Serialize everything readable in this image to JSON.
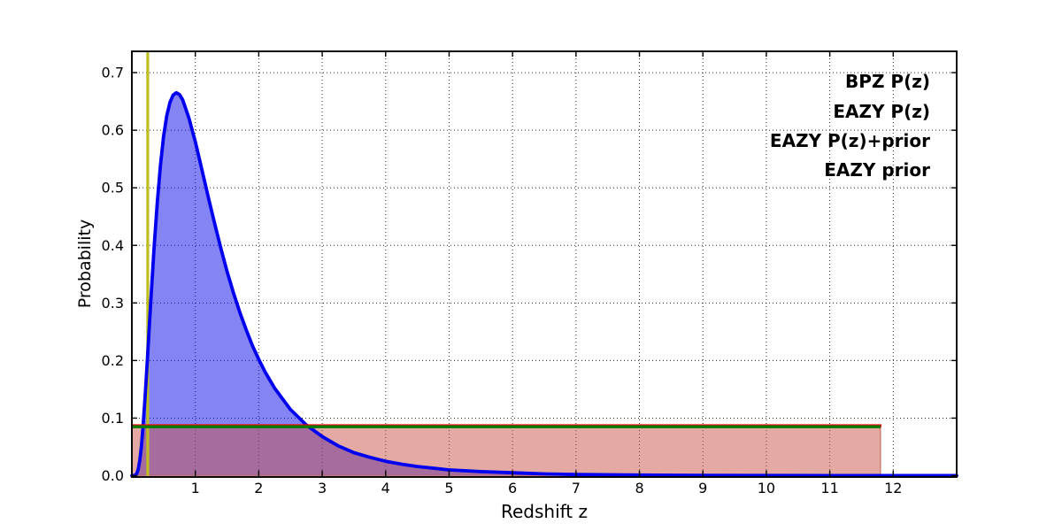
{
  "figure": {
    "background": "#ffffff",
    "plot_background": "#ffffff",
    "grid_color": "#2a2a2a",
    "spine_color": "#000000"
  },
  "chart_data": {
    "type": "line",
    "title": "",
    "xlabel": "Redshift z",
    "ylabel": "Probability",
    "xlim": [
      0,
      13
    ],
    "ylim": [
      0,
      0.737
    ],
    "xticks": [
      1,
      2,
      3,
      4,
      5,
      6,
      7,
      8,
      9,
      10,
      11,
      12
    ],
    "yticks": [
      0.0,
      0.1,
      0.2,
      0.3,
      0.4,
      0.5,
      0.6,
      0.7
    ],
    "grid": true,
    "grid_style": "dotted",
    "legend_position": "upper right inside, right-aligned text, no frame",
    "series": [
      {
        "name": "BPZ P(z)",
        "color": "#0000ee",
        "fill": "rgba(20,20,235,0.52)",
        "peak_z": 0.7,
        "peak_p": 0.665,
        "points": [
          [
            0,
            0
          ],
          [
            0.05,
            0.0004
          ],
          [
            0.075,
            0.003
          ],
          [
            0.1,
            0.011
          ],
          [
            0.125,
            0.027
          ],
          [
            0.15,
            0.051
          ],
          [
            0.175,
            0.083
          ],
          [
            0.2,
            0.122
          ],
          [
            0.225,
            0.165
          ],
          [
            0.25,
            0.211
          ],
          [
            0.275,
            0.259
          ],
          [
            0.3,
            0.306
          ],
          [
            0.35,
            0.396
          ],
          [
            0.4,
            0.474
          ],
          [
            0.45,
            0.539
          ],
          [
            0.5,
            0.589
          ],
          [
            0.55,
            0.625
          ],
          [
            0.6,
            0.648
          ],
          [
            0.65,
            0.661
          ],
          [
            0.7,
            0.665
          ],
          [
            0.75,
            0.662
          ],
          [
            0.8,
            0.653
          ],
          [
            0.9,
            0.621
          ],
          [
            1,
            0.58
          ],
          [
            1.1,
            0.533
          ],
          [
            1.2,
            0.486
          ],
          [
            1.3,
            0.44
          ],
          [
            1.4,
            0.396
          ],
          [
            1.5,
            0.355
          ],
          [
            1.6,
            0.318
          ],
          [
            1.7,
            0.284
          ],
          [
            1.8,
            0.254
          ],
          [
            1.9,
            0.226
          ],
          [
            2,
            0.202
          ],
          [
            2.1,
            0.18
          ],
          [
            2.25,
            0.152
          ],
          [
            2.5,
            0.115
          ],
          [
            2.75,
            0.088
          ],
          [
            3,
            0.068
          ],
          [
            3.25,
            0.052
          ],
          [
            3.5,
            0.04
          ],
          [
            3.75,
            0.032
          ],
          [
            4,
            0.025
          ],
          [
            4.25,
            0.02
          ],
          [
            4.5,
            0.016
          ],
          [
            4.75,
            0.013
          ],
          [
            5,
            0.01
          ],
          [
            5.5,
            0.007
          ],
          [
            6,
            0.005
          ],
          [
            6.5,
            0.003
          ],
          [
            7,
            0.002
          ],
          [
            8,
            0.001
          ],
          [
            9,
            0.0006
          ],
          [
            10,
            0.0003
          ],
          [
            11,
            0.0002
          ],
          [
            12,
            0.0001
          ],
          [
            13,
            0.0001
          ]
        ]
      },
      {
        "name": "EAZY P(z)",
        "color": "#ff0000",
        "fill": "rgba(202,84,72,0.5)",
        "edge": "rgba(178,74,62,0.6)",
        "shape": "flat-box",
        "value": 0.085,
        "z_start": 0,
        "z_end": 11.8
      },
      {
        "name": "EAZY P(z)+prior",
        "color": "#007b00",
        "shape": "flat-line",
        "value": 0.085,
        "z_start": 0,
        "z_end": 11.8
      },
      {
        "name": "EAZY prior",
        "color": "#000000",
        "shape": "flat-line",
        "value": 0.085,
        "z_start": 0,
        "z_end": 11.8,
        "note": "coincident with EAZY P(z)+prior line, hidden beneath it"
      }
    ],
    "marker_line": {
      "z": 0.25,
      "color": "#bdbd22",
      "orientation": "vertical",
      "extent": "full plot height"
    }
  }
}
